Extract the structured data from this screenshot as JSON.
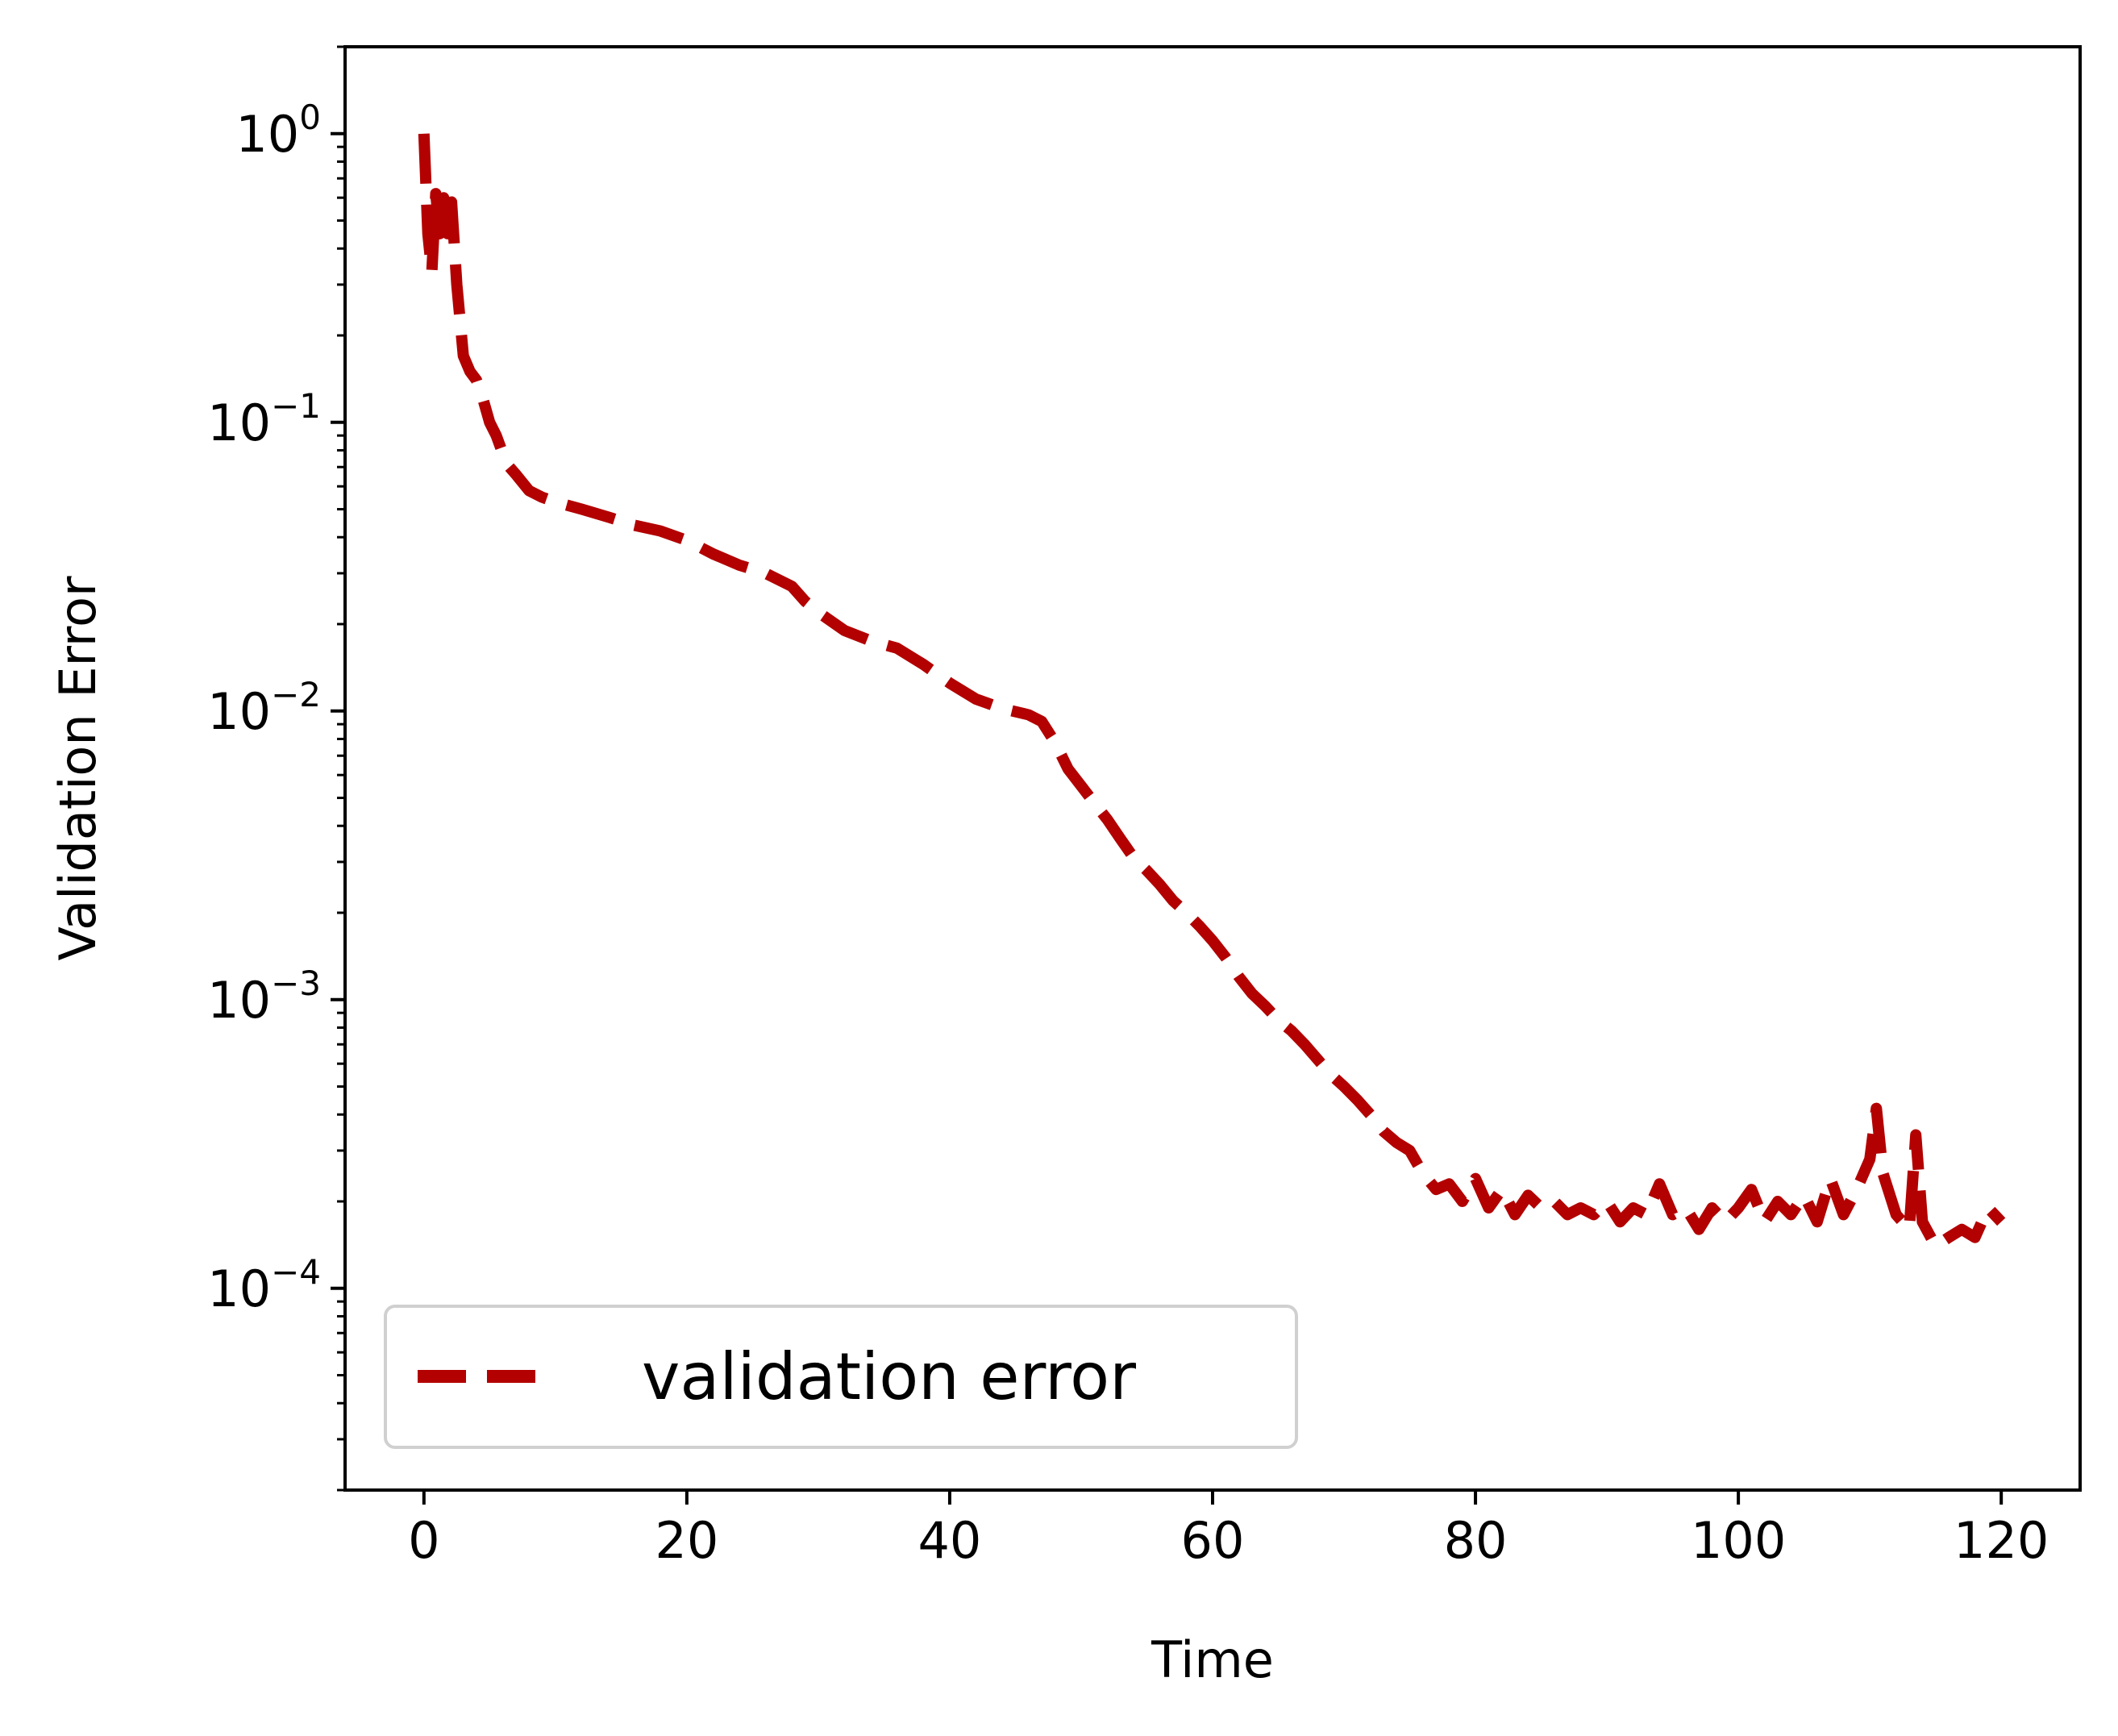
{
  "chart_data": {
    "type": "line",
    "xlabel": "Time",
    "ylabel": "Validation Error",
    "xlim": [
      -6,
      126
    ],
    "ylim": [
      2e-05,
      2
    ],
    "yscale": "log",
    "grid": false,
    "legend_position": "lower-left",
    "x_ticks": [
      0,
      20,
      40,
      60,
      80,
      100,
      120
    ],
    "y_ticks": [
      {
        "value": 1,
        "base": "10",
        "exponent": "0"
      },
      {
        "value": 0.1,
        "base": "10",
        "exponent": "−1"
      },
      {
        "value": 0.01,
        "base": "10",
        "exponent": "−2"
      },
      {
        "value": 0.001,
        "base": "10",
        "exponent": "−3"
      },
      {
        "value": 0.0001,
        "base": "10",
        "exponent": "−4"
      }
    ],
    "series": [
      {
        "name": "validation error",
        "color": "#b30000",
        "line_style": "dashed",
        "points": [
          [
            0,
            1.0
          ],
          [
            0.3,
            0.45
          ],
          [
            0.6,
            0.33
          ],
          [
            0.9,
            0.62
          ],
          [
            1.2,
            0.45
          ],
          [
            1.5,
            0.6
          ],
          [
            1.8,
            0.45
          ],
          [
            2.1,
            0.58
          ],
          [
            2.5,
            0.3
          ],
          [
            3,
            0.17
          ],
          [
            3.5,
            0.15
          ],
          [
            4,
            0.14
          ],
          [
            4.5,
            0.12
          ],
          [
            5,
            0.1
          ],
          [
            5.5,
            0.09
          ],
          [
            6,
            0.078
          ],
          [
            6.5,
            0.07
          ],
          [
            7,
            0.066
          ],
          [
            8,
            0.058
          ],
          [
            9,
            0.055
          ],
          [
            10,
            0.053
          ],
          [
            12,
            0.05
          ],
          [
            14,
            0.047
          ],
          [
            16,
            0.044
          ],
          [
            18,
            0.042
          ],
          [
            20,
            0.039
          ],
          [
            22,
            0.035
          ],
          [
            24,
            0.032
          ],
          [
            26,
            0.03
          ],
          [
            28,
            0.027
          ],
          [
            29,
            0.024
          ],
          [
            30,
            0.022
          ],
          [
            32,
            0.019
          ],
          [
            34,
            0.0175
          ],
          [
            36,
            0.0165
          ],
          [
            38,
            0.0145
          ],
          [
            40,
            0.0125
          ],
          [
            42,
            0.011
          ],
          [
            44,
            0.0102
          ],
          [
            46,
            0.0097
          ],
          [
            47,
            0.0092
          ],
          [
            48,
            0.0078
          ],
          [
            49,
            0.0063
          ],
          [
            50,
            0.0055
          ],
          [
            51,
            0.0048
          ],
          [
            52,
            0.0042
          ],
          [
            53,
            0.0036
          ],
          [
            54,
            0.0031
          ],
          [
            55,
            0.0028
          ],
          [
            56,
            0.0025
          ],
          [
            57,
            0.0022
          ],
          [
            58,
            0.002
          ],
          [
            59,
            0.0018
          ],
          [
            60,
            0.0016
          ],
          [
            61,
            0.0014
          ],
          [
            62,
            0.0012
          ],
          [
            63,
            0.00105
          ],
          [
            64,
            0.00095
          ],
          [
            65,
            0.00085
          ],
          [
            66,
            0.00078
          ],
          [
            67,
            0.0007
          ],
          [
            68,
            0.00062
          ],
          [
            69,
            0.00055
          ],
          [
            70,
            0.0005
          ],
          [
            71,
            0.00045
          ],
          [
            72,
            0.0004
          ],
          [
            73,
            0.00035
          ],
          [
            74,
            0.00032
          ],
          [
            75,
            0.0003
          ],
          [
            76,
            0.00025
          ],
          [
            77,
            0.00022
          ],
          [
            78,
            0.00023
          ],
          [
            79,
            0.0002
          ],
          [
            80,
            0.00024
          ],
          [
            81,
            0.00019
          ],
          [
            82,
            0.00022
          ],
          [
            83,
            0.00018
          ],
          [
            84,
            0.00021
          ],
          [
            85,
            0.00019
          ],
          [
            86,
            0.0002
          ],
          [
            87,
            0.00018
          ],
          [
            88,
            0.00019
          ],
          [
            89,
            0.00018
          ],
          [
            90,
            0.0002
          ],
          [
            91,
            0.00017
          ],
          [
            92,
            0.00019
          ],
          [
            93,
            0.00018
          ],
          [
            94,
            0.00023
          ],
          [
            95,
            0.00018
          ],
          [
            96,
            0.00019
          ],
          [
            97,
            0.00016
          ],
          [
            98,
            0.00019
          ],
          [
            99,
            0.00017
          ],
          [
            100,
            0.00019
          ],
          [
            101,
            0.00022
          ],
          [
            102,
            0.00017
          ],
          [
            103,
            0.0002
          ],
          [
            104,
            0.00018
          ],
          [
            105,
            0.00021
          ],
          [
            106,
            0.00017
          ],
          [
            107,
            0.00024
          ],
          [
            108,
            0.00018
          ],
          [
            109,
            0.00022
          ],
          [
            110,
            0.00028
          ],
          [
            110.5,
            0.00042
          ],
          [
            111,
            0.00025
          ],
          [
            112,
            0.00018
          ],
          [
            113,
            0.00016
          ],
          [
            113.5,
            0.00034
          ],
          [
            114,
            0.00017
          ],
          [
            115,
            0.00014
          ],
          [
            116,
            0.00015
          ],
          [
            117,
            0.00016
          ],
          [
            118,
            0.00015
          ],
          [
            119,
            0.00019
          ],
          [
            120,
            0.00017
          ]
        ]
      }
    ]
  }
}
